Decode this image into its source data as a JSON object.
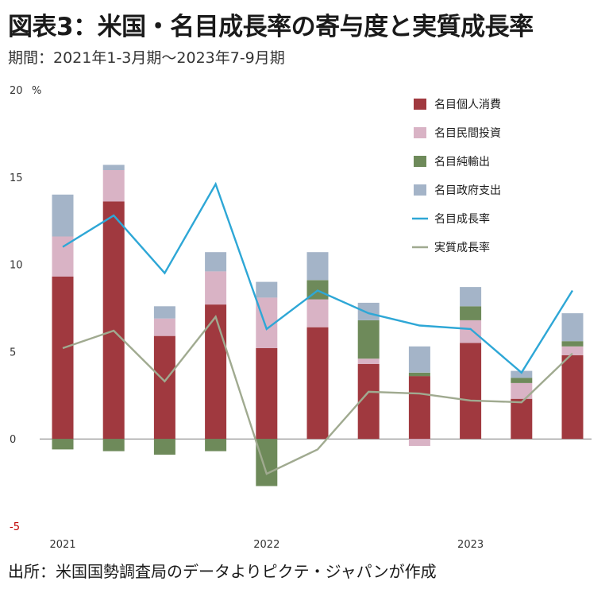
{
  "title": "図表3：米国・名目成長率の寄与度と実質成長率",
  "subtitle": "期間：2021年1-3月期～2023年7-9月期",
  "source": "出所：米国国勢調査局のデータよりピクテ・ジャパンが作成",
  "chart_data": {
    "type": "bar",
    "stacked": true,
    "unit": "%",
    "ylim": [
      -5,
      20
    ],
    "yticks": [
      -5,
      0,
      5,
      10,
      15,
      20
    ],
    "xtick_labels": [
      "2021",
      "2022",
      "2023"
    ],
    "categories": [
      "2021Q1",
      "2021Q2",
      "2021Q3",
      "2021Q4",
      "2022Q1",
      "2022Q2",
      "2022Q3",
      "2022Q4",
      "2023Q1",
      "2023Q2",
      "2023Q3"
    ],
    "series": [
      {
        "name": "名目個人消費",
        "kind": "bar",
        "color": "#a0393f",
        "values": [
          9.3,
          13.6,
          5.9,
          7.7,
          5.2,
          6.4,
          4.3,
          3.6,
          5.5,
          2.3,
          4.8
        ]
      },
      {
        "name": "名目民間投資",
        "kind": "bar",
        "color": "#d9b3c5",
        "values": [
          2.3,
          1.8,
          1.0,
          1.9,
          2.9,
          1.6,
          0.3,
          -0.4,
          1.3,
          0.9,
          0.5
        ]
      },
      {
        "name": "名目純輸出",
        "kind": "bar",
        "color": "#6e8a5a",
        "values": [
          -0.6,
          -0.7,
          -0.9,
          -0.7,
          -2.7,
          1.1,
          2.2,
          0.2,
          0.8,
          0.3,
          0.3
        ]
      },
      {
        "name": "名目政府支出",
        "kind": "bar",
        "color": "#a4b4c8",
        "values": [
          2.4,
          0.3,
          0.7,
          1.1,
          0.9,
          1.6,
          1.0,
          1.5,
          1.1,
          0.4,
          1.6
        ]
      },
      {
        "name": "名目成長率",
        "kind": "line",
        "color": "#2ea7d6",
        "values": [
          11.0,
          12.8,
          9.5,
          14.6,
          6.3,
          8.5,
          7.2,
          6.5,
          6.3,
          3.8,
          8.5
        ]
      },
      {
        "name": "実質成長率",
        "kind": "line",
        "color": "#a0aa90",
        "values": [
          5.2,
          6.2,
          3.3,
          7.0,
          -2.0,
          -0.6,
          2.7,
          2.6,
          2.2,
          2.1,
          4.9
        ]
      }
    ]
  }
}
